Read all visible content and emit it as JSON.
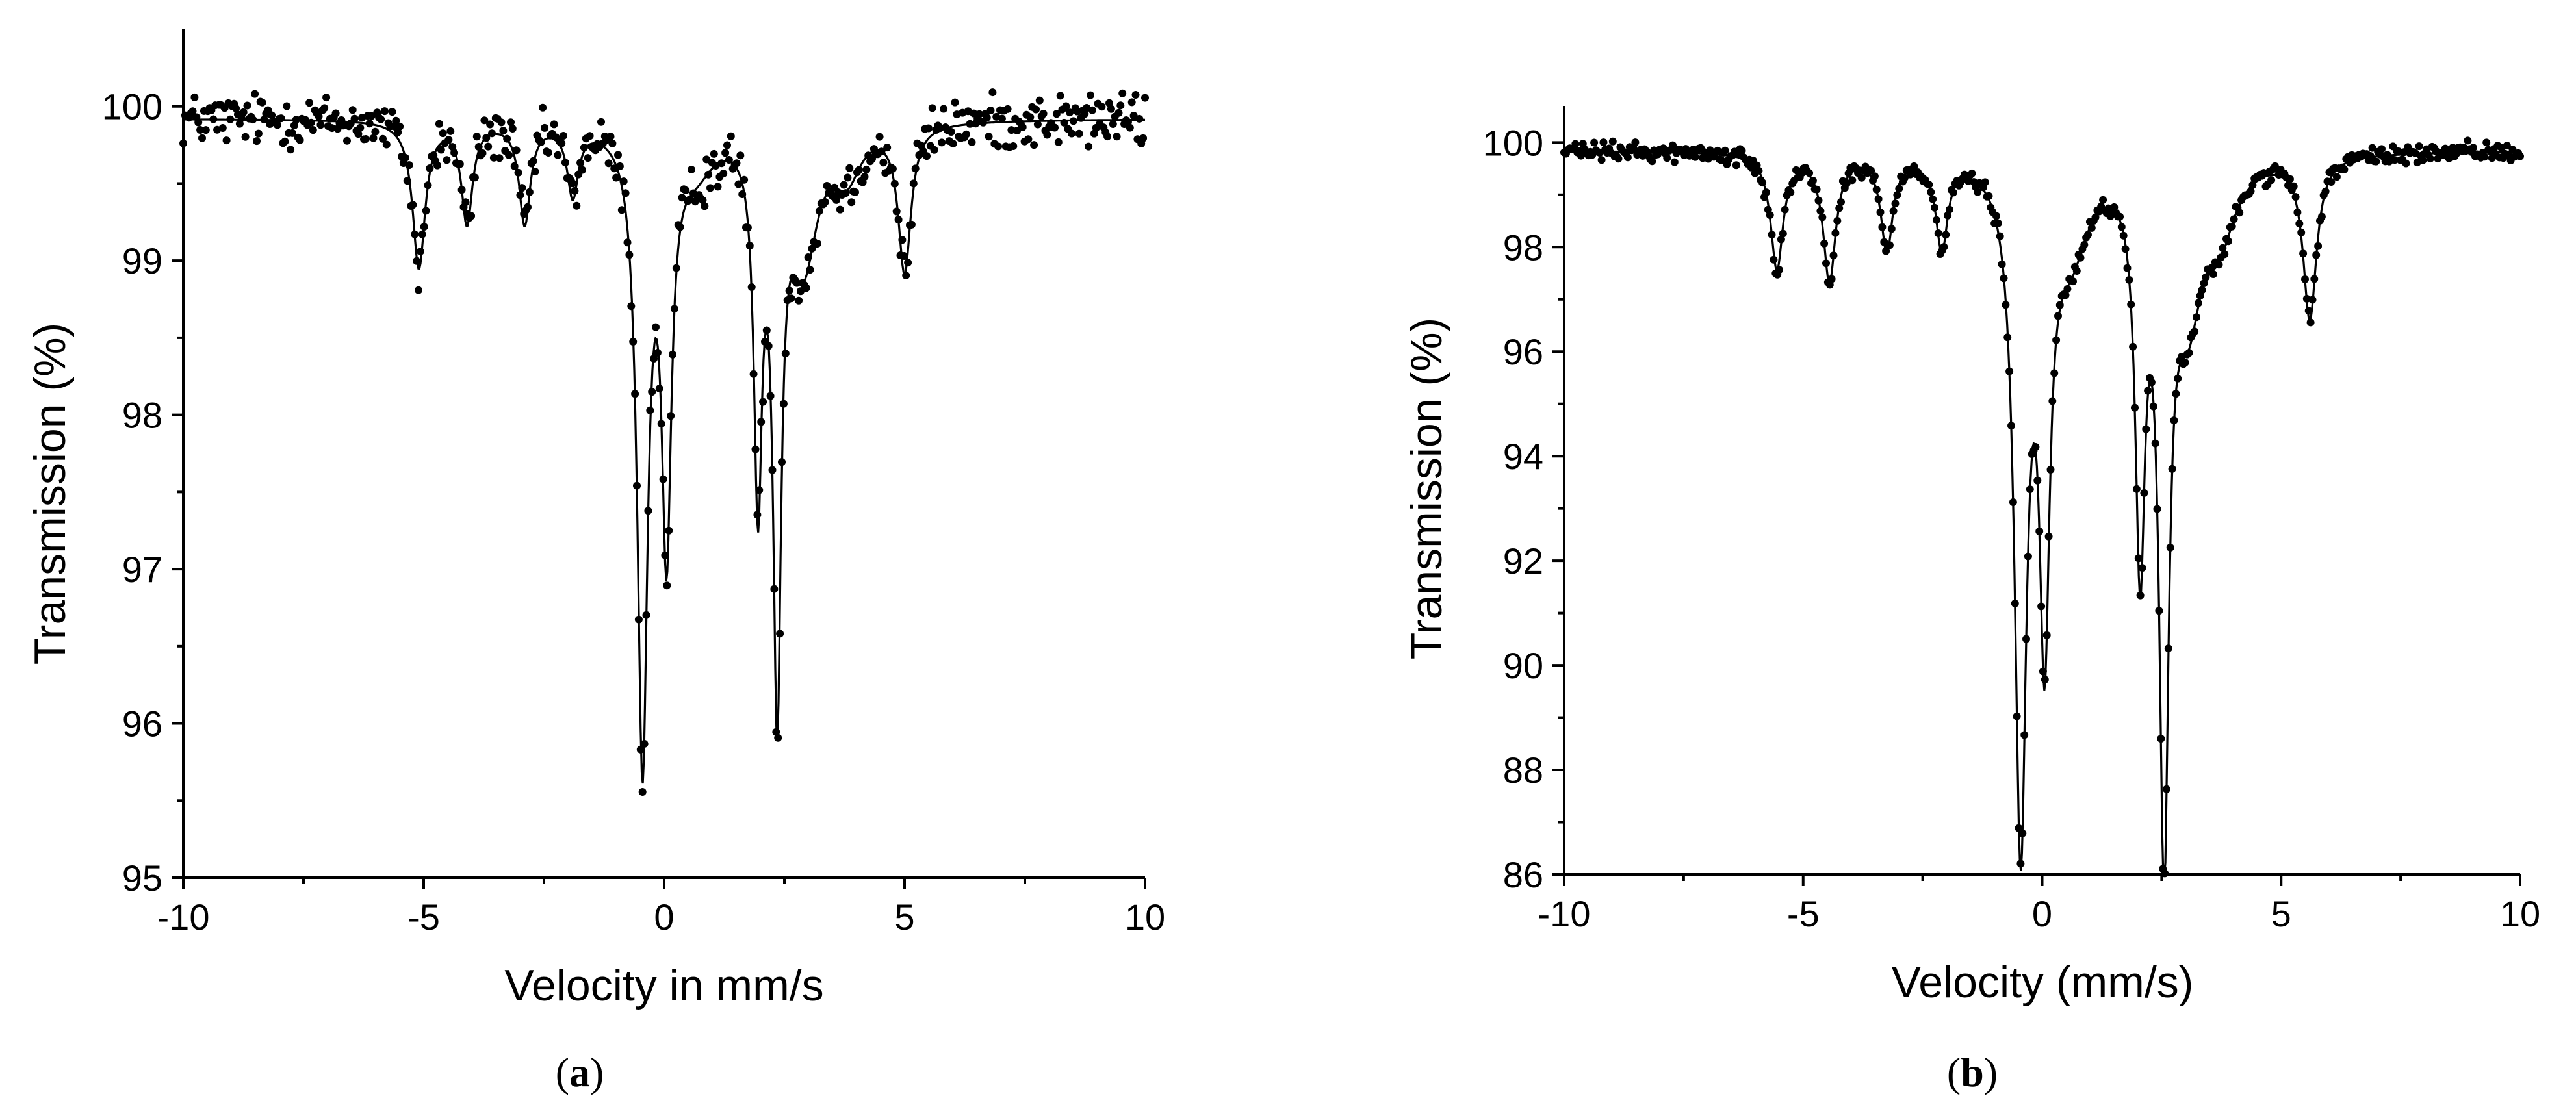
{
  "chart_data": [
    {
      "type": "scatter",
      "panel_label": "a",
      "xlabel": "Velocity in mm/s",
      "ylabel": "Transmission (%)",
      "xlim": [
        -10,
        10
      ],
      "ylim": [
        95,
        100.5
      ],
      "x_ticks": [
        -10,
        -5,
        0,
        5,
        10
      ],
      "y_ticks": [
        95,
        96,
        97,
        98,
        99,
        100
      ],
      "x_tick_labels": [
        "-10",
        "-5",
        "0",
        "5",
        "10"
      ],
      "y_tick_labels": [
        "95",
        "96",
        "97",
        "98",
        "99",
        "100"
      ],
      "grid": false,
      "series": [
        {
          "kind": "measured-points-and-fit",
          "baseline": 99.92,
          "noise": 0.12,
          "peaks": [
            {
              "x": -5.1,
              "depth": 0.95,
              "width": 0.16
            },
            {
              "x": -4.1,
              "depth": 0.65,
              "width": 0.14
            },
            {
              "x": -2.9,
              "depth": 0.65,
              "width": 0.14
            },
            {
              "x": -1.9,
              "depth": 0.45,
              "width": 0.14
            },
            {
              "x": -0.45,
              "depth": 4.1,
              "width": 0.13
            },
            {
              "x": 0.05,
              "depth": 2.6,
              "width": 0.12
            },
            {
              "x": 0.65,
              "depth": 0.25,
              "width": 0.5
            },
            {
              "x": 1.95,
              "depth": 2.3,
              "width": 0.1
            },
            {
              "x": 2.35,
              "depth": 3.6,
              "width": 0.1
            },
            {
              "x": 2.9,
              "depth": 0.85,
              "width": 0.35
            },
            {
              "x": 3.8,
              "depth": 0.3,
              "width": 0.35
            },
            {
              "x": 5.0,
              "depth": 0.95,
              "width": 0.16
            }
          ]
        }
      ]
    },
    {
      "type": "scatter",
      "panel_label": "b",
      "xlabel": "Velocity (mm/s)",
      "ylabel": "Transmission (%)",
      "xlim": [
        -10,
        10
      ],
      "ylim": [
        86,
        100.7
      ],
      "x_ticks": [
        -10,
        -5,
        0,
        5,
        10
      ],
      "y_ticks": [
        86,
        88,
        90,
        92,
        94,
        96,
        98,
        100
      ],
      "x_tick_labels": [
        "-10",
        "-5",
        "0",
        "5",
        "10"
      ],
      "y_tick_labels": [
        "86",
        "88",
        "90",
        "92",
        "94",
        "96",
        "98",
        "100"
      ],
      "grid": false,
      "series": [
        {
          "kind": "measured-points-and-fit",
          "baseline": 99.85,
          "noise": 0.12,
          "peaks": [
            {
              "x": -5.55,
              "depth": 2.2,
              "width": 0.16
            },
            {
              "x": -4.45,
              "depth": 2.4,
              "width": 0.16
            },
            {
              "x": -3.25,
              "depth": 1.8,
              "width": 0.15
            },
            {
              "x": -2.1,
              "depth": 1.7,
              "width": 0.15
            },
            {
              "x": -0.45,
              "depth": 12.9,
              "width": 0.15
            },
            {
              "x": 0.05,
              "depth": 8.5,
              "width": 0.13
            },
            {
              "x": 0.6,
              "depth": 1.6,
              "width": 0.45
            },
            {
              "x": 2.05,
              "depth": 7.3,
              "width": 0.12
            },
            {
              "x": 2.55,
              "depth": 12.7,
              "width": 0.12
            },
            {
              "x": 3.05,
              "depth": 2.6,
              "width": 0.35
            },
            {
              "x": 3.7,
              "depth": 1.3,
              "width": 0.4
            },
            {
              "x": 5.6,
              "depth": 3.1,
              "width": 0.17
            }
          ]
        }
      ]
    }
  ]
}
